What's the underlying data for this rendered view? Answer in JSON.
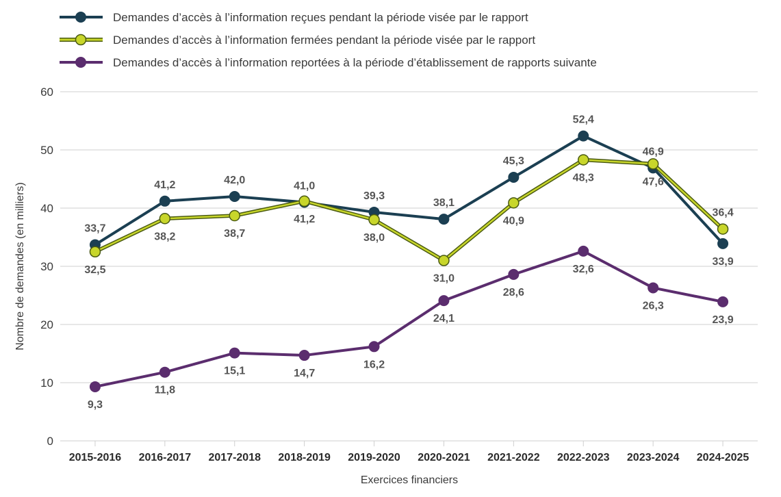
{
  "chart_data": {
    "type": "line",
    "title": "",
    "xlabel": "Exercices financiers",
    "ylabel": "Nombre de demandes (en milliers)",
    "ylim": [
      0,
      60
    ],
    "yticks": [
      0,
      10,
      20,
      30,
      40,
      50,
      60
    ],
    "grid": true,
    "legend_position": "top-left",
    "categories": [
      "2015-2016",
      "2016-2017",
      "2017-2018",
      "2018-2019",
      "2019-2020",
      "2020-2021",
      "2021-2022",
      "2022-2023",
      "2023-2024",
      "2024-2025"
    ],
    "series": [
      {
        "name": "Demandes d’accès à l’information reçues pendant la période visée par le rapport",
        "color": "#1b3f52",
        "values": [
          33.7,
          41.2,
          42.0,
          41.0,
          39.3,
          38.1,
          45.3,
          52.4,
          46.9,
          33.9
        ],
        "labels": [
          "33,7",
          "41,2",
          "42,0",
          "41,0",
          "39,3",
          "38,1",
          "45,3",
          "52,4",
          "46,9",
          "33,9"
        ],
        "label_side": [
          "above",
          "above",
          "above",
          "above",
          "above",
          "above",
          "above",
          "above",
          "above",
          "below"
        ]
      },
      {
        "name": "Demandes d’accès à l’information fermées pendant la période visée par le rapport",
        "color": "#c8d62b",
        "outline": "#4a5a12",
        "values": [
          32.5,
          38.2,
          38.7,
          41.2,
          38.0,
          31.0,
          40.9,
          48.3,
          47.6,
          36.4
        ],
        "labels": [
          "32,5",
          "38,2",
          "38,7",
          "41,2",
          "38,0",
          "31,0",
          "40,9",
          "48,3",
          "47,6",
          "36,4"
        ],
        "label_side": [
          "below",
          "below",
          "below",
          "below",
          "below",
          "below",
          "below",
          "below",
          "below",
          "above"
        ]
      },
      {
        "name": "Demandes d’accès à l’information reportées à la période d’établissement de rapports suivante",
        "color": "#5b2d6e",
        "values": [
          9.3,
          11.8,
          15.1,
          14.7,
          16.2,
          24.1,
          28.6,
          32.6,
          26.3,
          23.9
        ],
        "labels": [
          "9,3",
          "11,8",
          "15,1",
          "14,7",
          "16,2",
          "24,1",
          "28,6",
          "32,6",
          "26,3",
          "23,9"
        ],
        "label_side": [
          "below",
          "below",
          "below",
          "below",
          "below",
          "below",
          "below",
          "below",
          "below",
          "below"
        ]
      }
    ]
  }
}
